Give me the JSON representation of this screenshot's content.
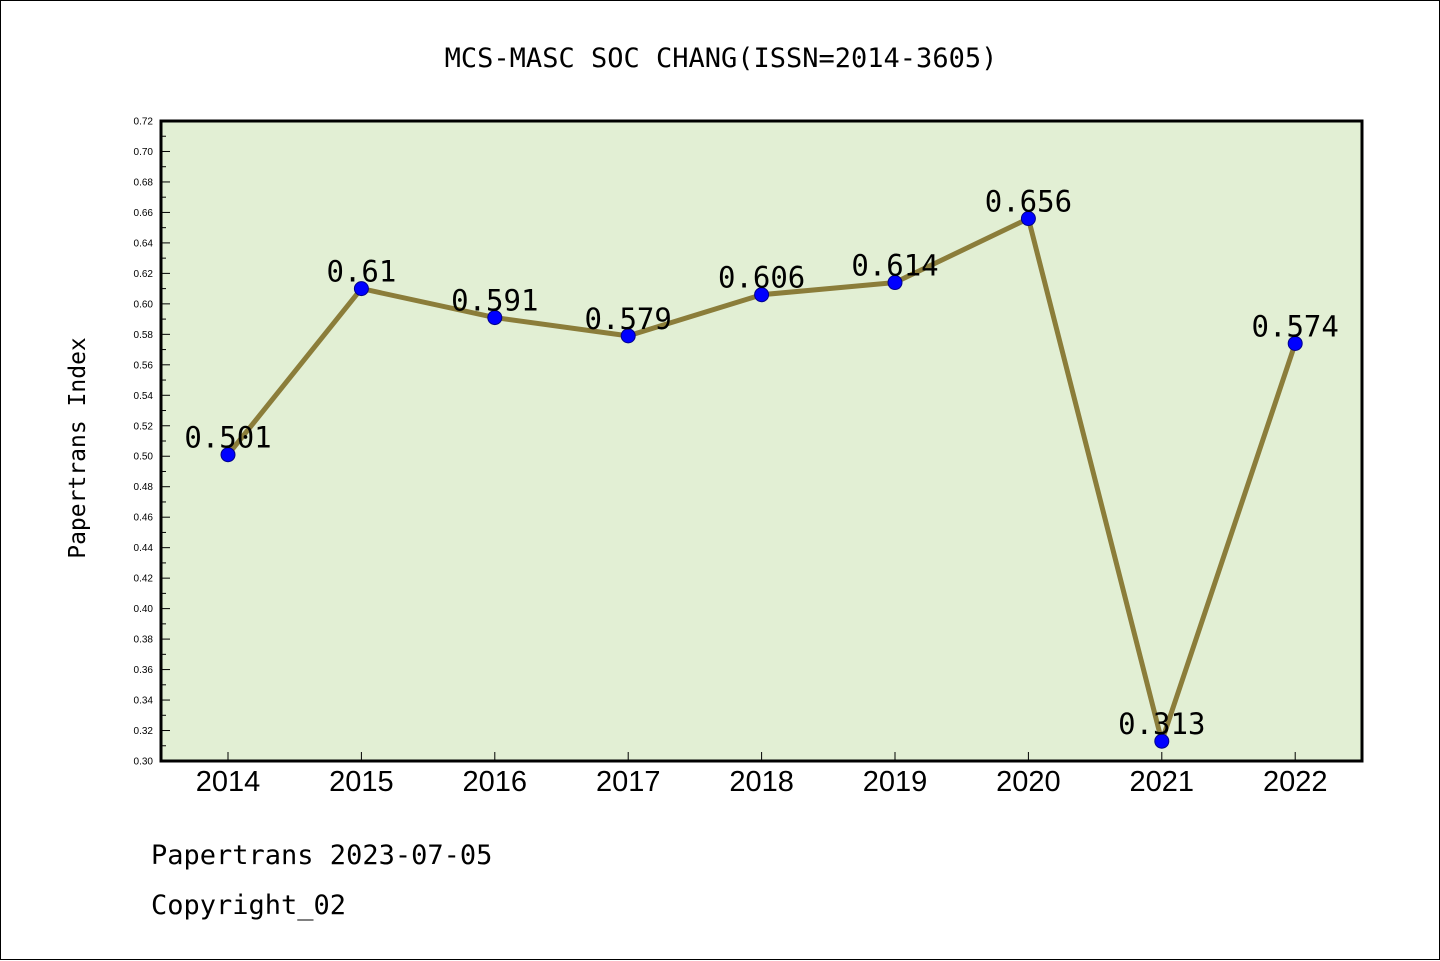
{
  "chart_data": {
    "type": "line",
    "title": "MCS-MASC SOC CHANG(ISSN=2014-3605)",
    "xlabel": "",
    "ylabel": "Papertrans Index",
    "categories": [
      "2014",
      "2015",
      "2016",
      "2017",
      "2018",
      "2019",
      "2020",
      "2021",
      "2022"
    ],
    "series": [
      {
        "values": [
          0.501,
          0.61,
          0.591,
          0.579,
          0.606,
          0.614,
          0.656,
          0.313,
          0.574
        ],
        "data_labels": [
          "0.501",
          "0.61",
          "0.591",
          "0.579",
          "0.606",
          "0.614",
          "0.656",
          "0.313",
          "0.574"
        ]
      }
    ],
    "ylim": [
      0.3,
      0.72
    ],
    "yticks": [
      "0.30",
      "0.32",
      "0.34",
      "0.36",
      "0.38",
      "0.40",
      "0.42",
      "0.44",
      "0.46",
      "0.48",
      "0.50",
      "0.52",
      "0.54",
      "0.56",
      "0.58",
      "0.60",
      "0.62",
      "0.64",
      "0.66",
      "0.68",
      "0.70",
      "0.72"
    ],
    "grid": false,
    "colors": {
      "plot_background": "#e2efd4",
      "line": "#8b7d3a",
      "marker": "#0000ff"
    }
  },
  "footer": {
    "line1": "Papertrans 2023-07-05",
    "line2": "Copyright_02"
  }
}
